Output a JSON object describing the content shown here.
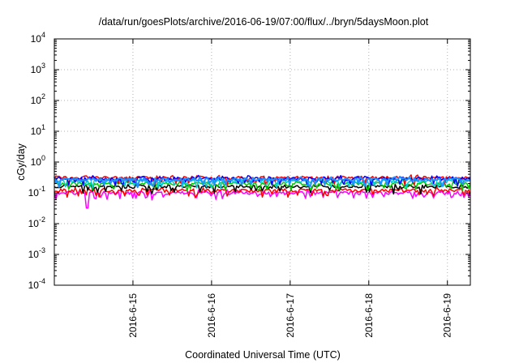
{
  "chart_data": {
    "type": "line",
    "title": "/data/run/goesPlots/archive/2016-06-19/07:00/flux/../bryn/5daysMoon.plot",
    "xlabel": "Coordinated Universal Time (UTC)",
    "ylabel": "cGy/day",
    "y_scale": "log",
    "ylim": [
      0.0001,
      10000
    ],
    "y_ticks": [
      {
        "value": 0.0001,
        "base": "10",
        "exp": "-4"
      },
      {
        "value": 0.001,
        "base": "10",
        "exp": "-3"
      },
      {
        "value": 0.01,
        "base": "10",
        "exp": "-2"
      },
      {
        "value": 0.1,
        "base": "10",
        "exp": "-1"
      },
      {
        "value": 1,
        "base": "10",
        "exp": "0"
      },
      {
        "value": 10,
        "base": "10",
        "exp": "1"
      },
      {
        "value": 100,
        "base": "10",
        "exp": "2"
      },
      {
        "value": 1000,
        "base": "10",
        "exp": "3"
      },
      {
        "value": 10000,
        "base": "10",
        "exp": "4"
      }
    ],
    "xlim": [
      "2016-06-14T00:00",
      "2016-06-19T07:00"
    ],
    "x_ticks": [
      {
        "value": "2016-06-15T00:00",
        "label": "2016-6-15"
      },
      {
        "value": "2016-06-16T00:00",
        "label": "2016-6-16"
      },
      {
        "value": "2016-06-17T00:00",
        "label": "2016-6-17"
      },
      {
        "value": "2016-06-18T00:00",
        "label": "2016-6-18"
      },
      {
        "value": "2016-06-19T00:00",
        "label": "2016-6-19"
      }
    ],
    "grid": true,
    "series": [
      {
        "color": "#ff00ff",
        "base": 0.1,
        "x_range": [
          "2016-06-14T00:00",
          "2016-06-19T07:00"
        ],
        "dips": [
          {
            "x": "2016-06-14T10:00",
            "value": 0.032
          },
          {
            "x": "2016-06-14T00:30",
            "value": 0.06
          },
          {
            "x": "2016-06-16T18:00",
            "value": 0.075
          },
          {
            "x": "2016-06-19T04:00",
            "value": 0.08
          }
        ]
      },
      {
        "color": "#ff0000",
        "base": 0.12,
        "x_range": [
          "2016-06-14T00:00",
          "2016-06-19T07:00"
        ],
        "dips": []
      },
      {
        "color": "#000000",
        "base": 0.16,
        "x_range": [
          "2016-06-14T00:00",
          "2016-06-19T07:00"
        ],
        "dips": []
      },
      {
        "color": "#00cc00",
        "base": 0.2,
        "x_range": [
          "2016-06-14T00:00",
          "2016-06-19T07:00"
        ],
        "dips": []
      },
      {
        "color": "#00cccc",
        "base": 0.24,
        "x_range": [
          "2016-06-14T00:00",
          "2016-06-19T07:00"
        ],
        "dips": []
      },
      {
        "color": "#ff0000",
        "base": 0.31,
        "x_range": [
          "2016-06-14T00:00",
          "2016-06-19T07:00"
        ],
        "dips": []
      },
      {
        "color": "#0000ff",
        "base": 0.29,
        "x_range": [
          "2016-06-14T00:00",
          "2016-06-19T07:00"
        ],
        "dips": []
      },
      {
        "color": "#1e90ff",
        "base": 0.27,
        "x_range": [
          "2016-06-14T00:00",
          "2016-06-19T07:00"
        ],
        "dips": []
      }
    ]
  }
}
